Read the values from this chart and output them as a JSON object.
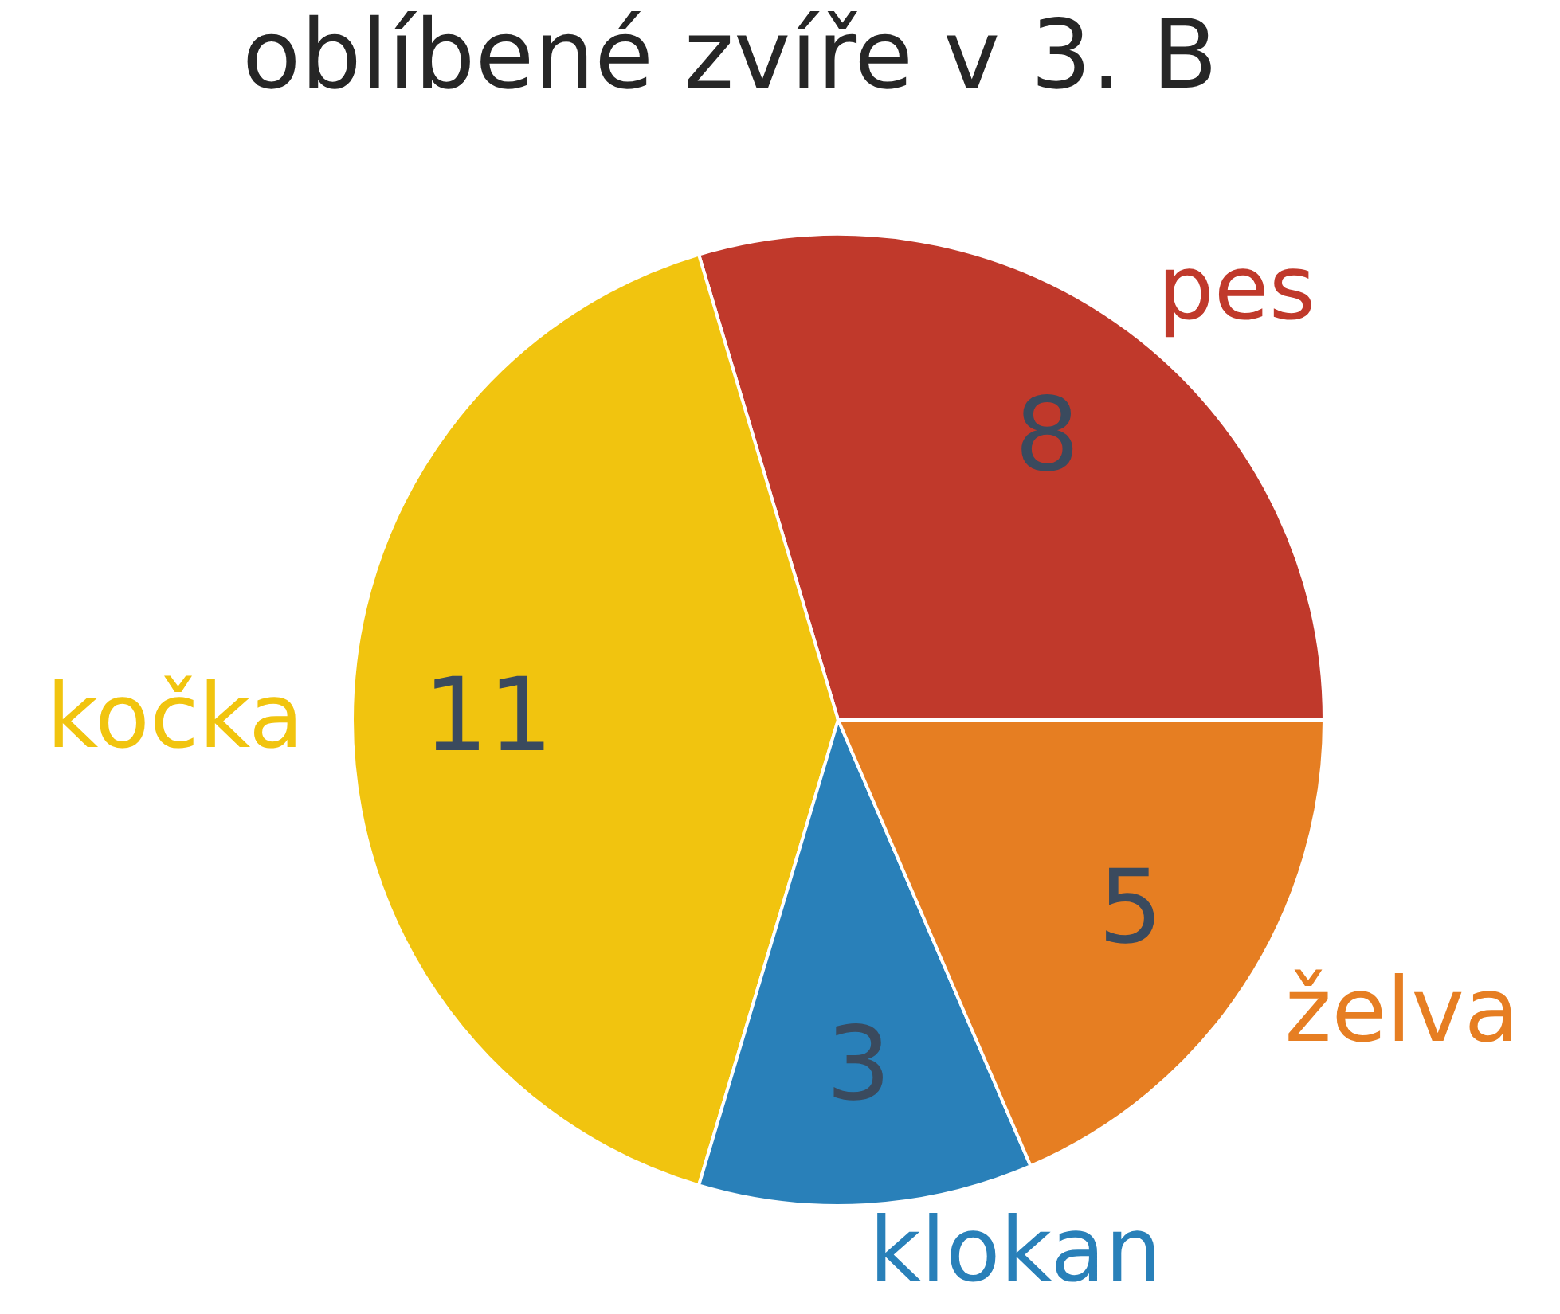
{
  "chart_data": {
    "type": "pie",
    "title": "oblíbené zvíře v 3. B",
    "categories": [
      "pes",
      "kočka",
      "klokan",
      "želva"
    ],
    "values": [
      8,
      11,
      3,
      5
    ],
    "colors": [
      "#c0392b",
      "#f1c40f",
      "#2980b9",
      "#e67e22"
    ],
    "data_labels": true,
    "legend": false
  }
}
